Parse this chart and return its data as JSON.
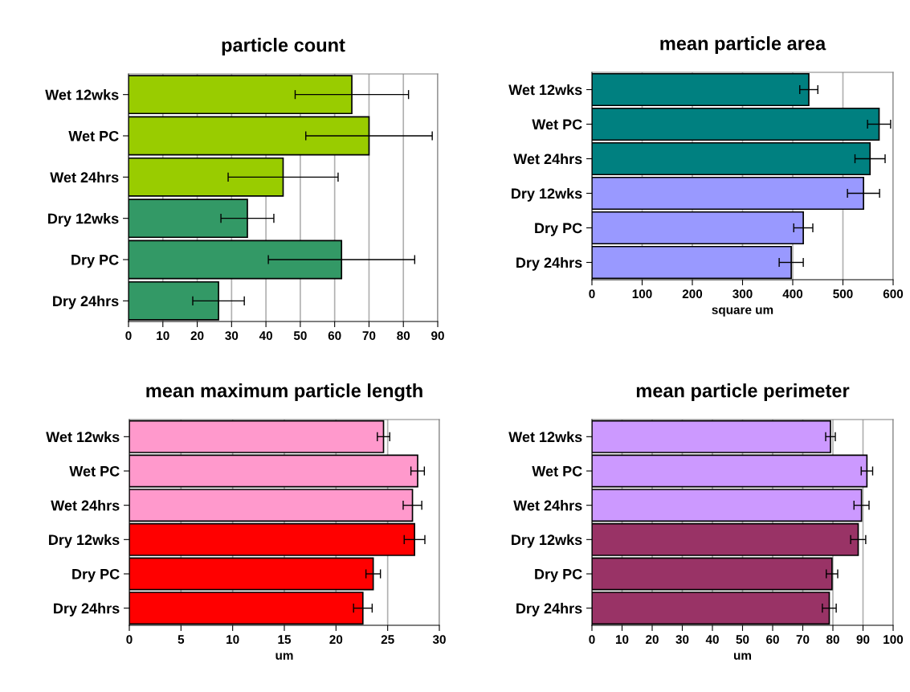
{
  "chart_data": [
    {
      "type": "bar",
      "orientation": "horizontal",
      "title": "particle count",
      "categories": [
        "Wet 12wks",
        "Wet PC",
        "Wet 24hrs",
        "Dry 12wks",
        "Dry PC",
        "Dry 24hrs"
      ],
      "values": [
        65,
        70,
        45,
        34.6,
        62,
        26.2
      ],
      "errors": [
        16.5,
        18.4,
        16,
        7.7,
        21.3,
        7.5
      ],
      "colors": [
        "#99cc00",
        "#99cc00",
        "#99cc00",
        "#339966",
        "#339966",
        "#339966"
      ],
      "xlim": [
        0,
        90
      ],
      "xticks": [
        0,
        10,
        20,
        30,
        40,
        50,
        60,
        70,
        80,
        90
      ],
      "grid": "x"
    },
    {
      "type": "bar",
      "orientation": "horizontal",
      "title": "mean particle area",
      "xlabel": "square um",
      "categories": [
        "Wet 12wks",
        "Wet PC",
        "Wet 24hrs",
        "Dry 12wks",
        "Dry PC",
        "Dry 24hrs"
      ],
      "values": [
        432,
        572,
        554,
        541,
        421,
        397
      ],
      "errors": [
        18,
        23,
        30,
        32,
        19,
        24
      ],
      "colors": [
        "#008080",
        "#008080",
        "#008080",
        "#9999ff",
        "#9999ff",
        "#9999ff"
      ],
      "xlim": [
        0,
        600
      ],
      "xticks": [
        0,
        100,
        200,
        300,
        400,
        500,
        600
      ],
      "grid": "x"
    },
    {
      "type": "bar",
      "orientation": "horizontal",
      "title": "mean maximum particle length",
      "xlabel": "um",
      "categories": [
        "Wet 12wks",
        "Wet PC",
        "Wet 24hrs",
        "Dry 12wks",
        "Dry PC",
        "Dry 24hrs"
      ],
      "values": [
        24.6,
        27.9,
        27.4,
        27.6,
        23.6,
        22.6
      ],
      "errors": [
        0.6,
        0.65,
        0.9,
        1.0,
        0.7,
        0.9
      ],
      "colors": [
        "#ff99cc",
        "#ff99cc",
        "#ff99cc",
        "#ff0000",
        "#ff0000",
        "#ff0000"
      ],
      "xlim": [
        0,
        30
      ],
      "xticks": [
        0,
        5,
        10,
        15,
        20,
        25,
        30
      ],
      "grid": "x"
    },
    {
      "type": "bar",
      "orientation": "horizontal",
      "title": "mean particle perimeter",
      "xlabel": "um",
      "categories": [
        "Wet 12wks",
        "Wet PC",
        "Wet 24hrs",
        "Dry 12wks",
        "Dry PC",
        "Dry 24hrs"
      ],
      "values": [
        79.2,
        91.3,
        89.5,
        88.4,
        79.7,
        78.8
      ],
      "errors": [
        1.6,
        1.9,
        2.5,
        2.5,
        1.9,
        2.3
      ],
      "colors": [
        "#cc99ff",
        "#cc99ff",
        "#cc99ff",
        "#993366",
        "#993366",
        "#993366"
      ],
      "xlim": [
        0,
        100
      ],
      "xticks": [
        0,
        10,
        20,
        30,
        40,
        50,
        60,
        70,
        80,
        90,
        100
      ],
      "grid": "x"
    }
  ]
}
